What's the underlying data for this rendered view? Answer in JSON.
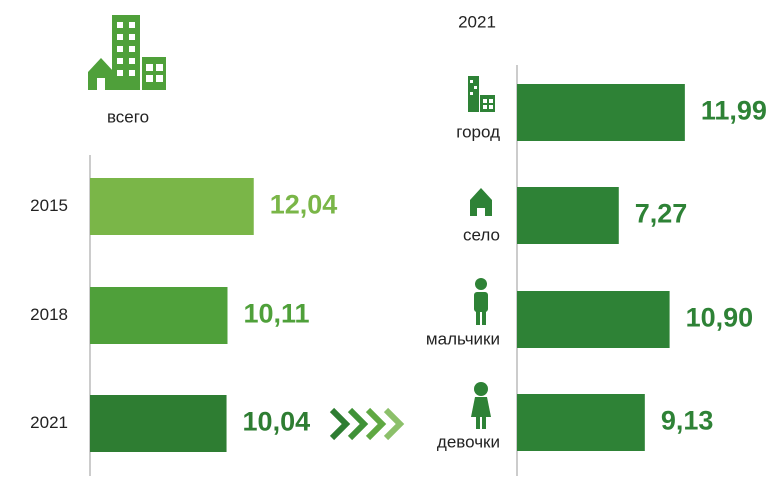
{
  "chart_data": [
    {
      "type": "hbar",
      "title": "всего",
      "categories": [
        "2015",
        "2018",
        "2021"
      ],
      "values": [
        12.04,
        10.11,
        10.04
      ],
      "value_labels": [
        "12,04",
        "10,11",
        "10,04"
      ],
      "colors": [
        "#7ab648",
        "#4fa03a",
        "#2e7d32"
      ]
    },
    {
      "type": "hbar",
      "title": "2021",
      "categories": [
        "город",
        "село",
        "мальчики",
        "девочки"
      ],
      "values": [
        11.99,
        7.27,
        10.9,
        9.13
      ],
      "value_labels": [
        "11,99",
        "7,27",
        "10,90",
        "9,13"
      ],
      "color": "#2e8236"
    }
  ]
}
